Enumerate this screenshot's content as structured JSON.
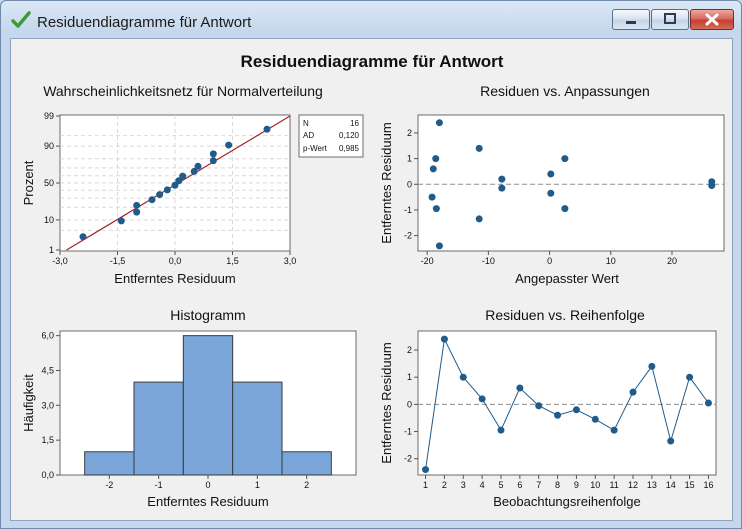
{
  "window": {
    "title": "Residuendiagramme für Antwort",
    "icon": "green-checkmark-icon",
    "buttons": [
      "minimize",
      "maximize",
      "close"
    ]
  },
  "main_title": "Residuendiagramme für Antwort",
  "colors": {
    "point": "#1f5c8c",
    "fit_line": "#a4202a",
    "bar_fill": "#7aa6d9",
    "bar_stroke": "#3a3a3a",
    "ref_line": "#8c8c8c",
    "grid": "#d9d9d9"
  },
  "chart_data": [
    {
      "id": "normal_probability",
      "type": "scatter",
      "title": "Wahrscheinlichkeitsnetz für Normalverteilung",
      "xlabel": "Entferntes Residuum",
      "ylabel": "Prozent",
      "x_ticks": [
        "-3,0",
        "-1,5",
        "0,0",
        "1,5",
        "3,0"
      ],
      "y_ticks": [
        "1",
        "10",
        "50",
        "90",
        "99"
      ],
      "xlim": [
        -3.0,
        3.0
      ],
      "ylim_percent": [
        1,
        99
      ],
      "grid": true,
      "fit_line": {
        "x": [
          -2.83,
          3.0
        ],
        "percent": [
          1,
          99
        ]
      },
      "points": [
        {
          "x": -2.4,
          "percent": 3.1
        },
        {
          "x": -1.4,
          "percent": 9.4
        },
        {
          "x": -1.0,
          "percent": 15.6
        },
        {
          "x": -1.0,
          "percent": 21.9
        },
        {
          "x": -0.6,
          "percent": 28.1
        },
        {
          "x": -0.4,
          "percent": 34.4
        },
        {
          "x": -0.2,
          "percent": 40.6
        },
        {
          "x": 0.0,
          "percent": 46.9
        },
        {
          "x": 0.1,
          "percent": 53.1
        },
        {
          "x": 0.2,
          "percent": 59.4
        },
        {
          "x": 0.5,
          "percent": 65.6
        },
        {
          "x": 0.6,
          "percent": 71.9
        },
        {
          "x": 1.0,
          "percent": 78.1
        },
        {
          "x": 1.0,
          "percent": 84.4
        },
        {
          "x": 1.4,
          "percent": 90.6
        },
        {
          "x": 2.4,
          "percent": 96.9
        }
      ],
      "stats_box": [
        {
          "label": "N",
          "value": "16"
        },
        {
          "label": "AD",
          "value": "0,120"
        },
        {
          "label": "p-Wert",
          "value": "0,985"
        }
      ]
    },
    {
      "id": "residuals_vs_fits",
      "type": "scatter",
      "title": "Residuen vs. Anpassungen",
      "xlabel": "Angepasster Wert",
      "ylabel": "Entferntes Residuum",
      "x_ticks": [
        "-20",
        "-10",
        "0",
        "10",
        "20"
      ],
      "y_ticks": [
        "-2",
        "-1",
        "0",
        "1",
        "2"
      ],
      "xlim": [
        -21.5,
        28.5
      ],
      "ylim": [
        -2.6,
        2.7
      ],
      "reference_line": 0,
      "points": [
        {
          "x": -18.0,
          "y": -2.4
        },
        {
          "x": -18.0,
          "y": 2.4
        },
        {
          "x": -19.2,
          "y": -0.5
        },
        {
          "x": -19.0,
          "y": 0.6
        },
        {
          "x": -18.5,
          "y": -0.95
        },
        {
          "x": -18.6,
          "y": 1.0
        },
        {
          "x": -11.5,
          "y": 1.4
        },
        {
          "x": -11.5,
          "y": -1.35
        },
        {
          "x": -7.8,
          "y": 0.2
        },
        {
          "x": -7.8,
          "y": -0.15
        },
        {
          "x": 0.2,
          "y": 0.4
        },
        {
          "x": 0.2,
          "y": -0.35
        },
        {
          "x": 2.5,
          "y": 1.0
        },
        {
          "x": 2.5,
          "y": -0.95
        },
        {
          "x": 26.5,
          "y": 0.1
        },
        {
          "x": 26.5,
          "y": -0.05
        }
      ]
    },
    {
      "id": "histogram",
      "type": "bar",
      "title": "Histogramm",
      "xlabel": "Entferntes Residuum",
      "ylabel": "Häufigkeit",
      "x_ticks": [
        "-2",
        "-1",
        "0",
        "1",
        "2"
      ],
      "y_ticks": [
        "0,0",
        "1,5",
        "3,0",
        "4,5",
        "6,0"
      ],
      "xlim": [
        -3.0,
        3.0
      ],
      "ylim": [
        0,
        6.2
      ],
      "bins": [
        {
          "from": -2.5,
          "to": -1.5,
          "count": 1
        },
        {
          "from": -1.5,
          "to": -0.5,
          "count": 4
        },
        {
          "from": -0.5,
          "to": 0.5,
          "count": 6
        },
        {
          "from": 0.5,
          "to": 1.5,
          "count": 4
        },
        {
          "from": 1.5,
          "to": 2.5,
          "count": 1
        }
      ]
    },
    {
      "id": "residuals_vs_order",
      "type": "line",
      "title": "Residuen vs. Reihenfolge",
      "xlabel": "Beobachtungsreihenfolge",
      "ylabel": "Entferntes Residuum",
      "x_ticks": [
        "1",
        "2",
        "3",
        "4",
        "5",
        "6",
        "7",
        "8",
        "9",
        "10",
        "11",
        "12",
        "13",
        "14",
        "15",
        "16"
      ],
      "y_ticks": [
        "-2",
        "-1",
        "0",
        "1",
        "2"
      ],
      "xlim": [
        0.6,
        16.4
      ],
      "ylim": [
        -2.6,
        2.7
      ],
      "reference_line": 0,
      "x": [
        1,
        2,
        3,
        4,
        5,
        6,
        7,
        8,
        9,
        10,
        11,
        12,
        13,
        14,
        15,
        16
      ],
      "y": [
        -2.4,
        2.4,
        1.0,
        0.2,
        -0.95,
        0.6,
        -0.05,
        -0.4,
        -0.2,
        -0.55,
        -0.95,
        0.45,
        1.4,
        -1.35,
        1.0,
        0.05
      ]
    }
  ]
}
